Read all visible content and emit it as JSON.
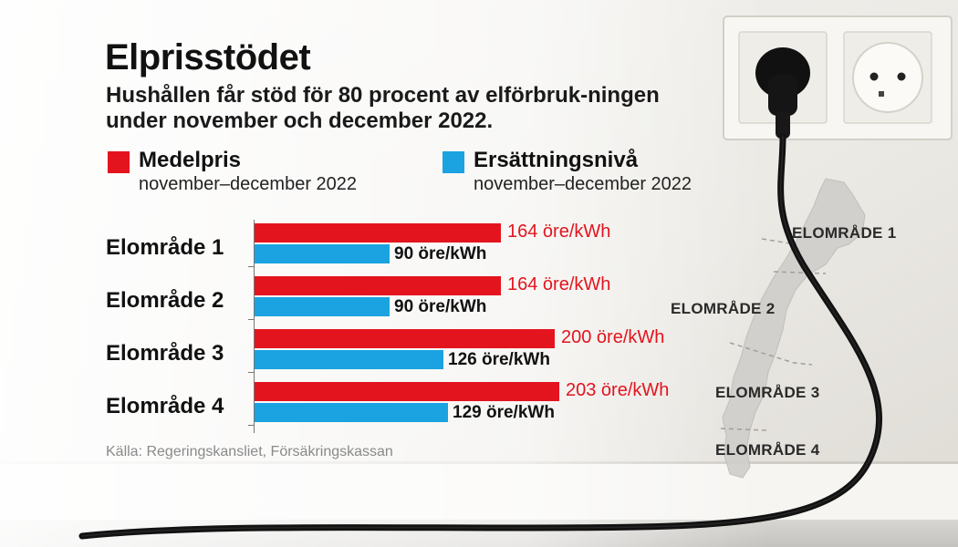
{
  "header": {
    "title": "Elprisstödet",
    "subtitle": "Hushållen får stöd för 80 procent av elförbruk-ningen under november och december 2022."
  },
  "legend": [
    {
      "label": "Medelpris",
      "period": "november–december 2022",
      "color": "#e3141e"
    },
    {
      "label": "Ersättningsnivå",
      "period": "november–december 2022",
      "color": "#1aa3e0"
    }
  ],
  "chart_data": {
    "type": "bar",
    "orientation": "horizontal",
    "categories": [
      "Elområde 1",
      "Elområde 2",
      "Elområde 3",
      "Elområde 4"
    ],
    "series": [
      {
        "name": "Medelpris",
        "values": [
          164,
          164,
          200,
          203
        ],
        "labels": [
          "164 öre/kWh",
          "164 öre/kWh",
          "200 öre/kWh",
          "203 öre/kWh"
        ]
      },
      {
        "name": "Ersättningsnivå",
        "values": [
          90,
          90,
          126,
          129
        ],
        "labels": [
          "90 öre/kWh",
          "90 öre/kWh",
          "126 öre/kWh",
          "129 öre/kWh"
        ]
      }
    ],
    "xlim": [
      0,
      203
    ],
    "grid": false,
    "legend_position": "top-left"
  },
  "source": "Källa: Regeringskansliet, Försäkringskassan",
  "map_labels": [
    "ELOMRÅDE 1",
    "ELOMRÅDE 2",
    "ELOMRÅDE 3",
    "ELOMRÅDE 4"
  ],
  "colors": {
    "red": "#e3141e",
    "blue": "#1aa3e0",
    "wall": "#e9e7e2"
  }
}
